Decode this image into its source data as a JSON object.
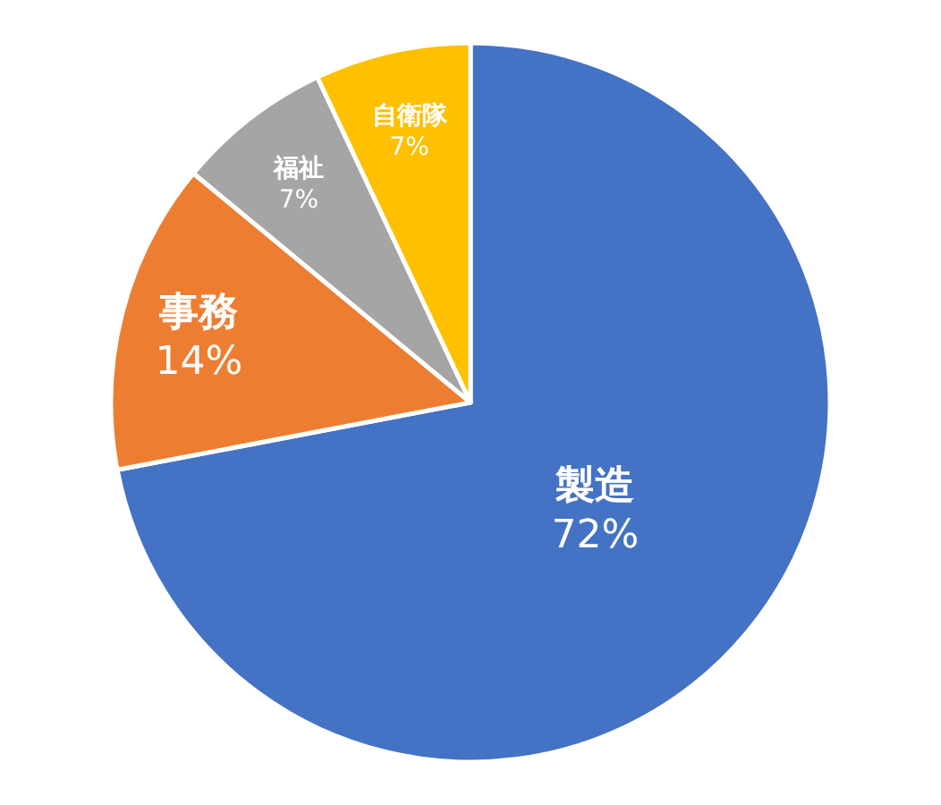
{
  "chart_data": {
    "type": "pie",
    "categories": [
      "製造",
      "事務",
      "福祉",
      "自衛隊"
    ],
    "values": [
      72,
      14,
      7,
      7
    ],
    "colors": [
      "#4472c4",
      "#ed7d31",
      "#a5a5a5",
      "#ffc000"
    ],
    "value_labels": [
      "72%",
      "14%",
      "7%",
      "7%"
    ],
    "legend": false
  }
}
